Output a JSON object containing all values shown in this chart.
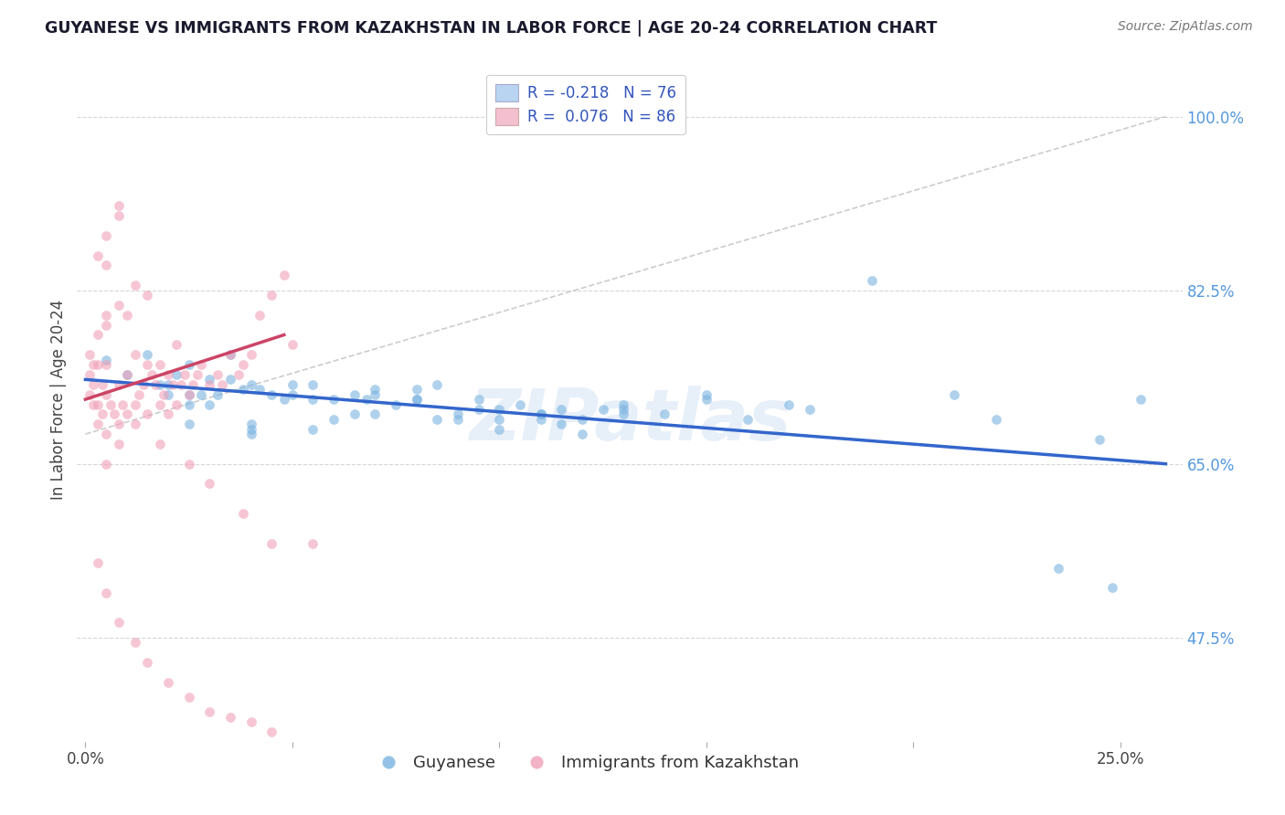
{
  "title": "GUYANESE VS IMMIGRANTS FROM KAZAKHSTAN IN LABOR FORCE | AGE 20-24 CORRELATION CHART",
  "source": "Source: ZipAtlas.com",
  "ylabel": "In Labor Force | Age 20-24",
  "xlim": [
    -0.002,
    0.265
  ],
  "ylim": [
    0.37,
    1.06
  ],
  "watermark": "ZIPatlas",
  "blue_scatter_x": [
    0.005,
    0.01,
    0.015,
    0.018,
    0.02,
    0.022,
    0.025,
    0.028,
    0.03,
    0.032,
    0.035,
    0.038,
    0.04,
    0.042,
    0.045,
    0.048,
    0.05,
    0.055,
    0.06,
    0.065,
    0.068,
    0.07,
    0.075,
    0.08,
    0.085,
    0.09,
    0.095,
    0.1,
    0.105,
    0.11,
    0.115,
    0.12,
    0.125,
    0.13,
    0.14,
    0.15,
    0.16,
    0.175,
    0.19,
    0.21,
    0.22,
    0.245,
    0.025,
    0.035,
    0.05,
    0.065,
    0.08,
    0.095,
    0.11,
    0.13,
    0.15,
    0.17,
    0.02,
    0.03,
    0.04,
    0.055,
    0.07,
    0.09,
    0.11,
    0.13,
    0.025,
    0.04,
    0.06,
    0.08,
    0.1,
    0.12,
    0.235,
    0.248,
    0.255,
    0.025,
    0.04,
    0.055,
    0.07,
    0.085,
    0.1,
    0.115
  ],
  "blue_scatter_y": [
    0.755,
    0.74,
    0.76,
    0.73,
    0.72,
    0.74,
    0.75,
    0.72,
    0.735,
    0.72,
    0.735,
    0.725,
    0.73,
    0.725,
    0.72,
    0.715,
    0.72,
    0.73,
    0.715,
    0.72,
    0.715,
    0.725,
    0.71,
    0.715,
    0.73,
    0.7,
    0.715,
    0.705,
    0.71,
    0.7,
    0.705,
    0.695,
    0.705,
    0.705,
    0.7,
    0.715,
    0.695,
    0.705,
    0.835,
    0.72,
    0.695,
    0.675,
    0.72,
    0.76,
    0.73,
    0.7,
    0.725,
    0.705,
    0.7,
    0.71,
    0.72,
    0.71,
    0.73,
    0.71,
    0.69,
    0.715,
    0.72,
    0.695,
    0.695,
    0.7,
    0.71,
    0.685,
    0.695,
    0.715,
    0.695,
    0.68,
    0.545,
    0.525,
    0.715,
    0.69,
    0.68,
    0.685,
    0.7,
    0.695,
    0.685,
    0.69
  ],
  "pink_scatter_x": [
    0.001,
    0.001,
    0.001,
    0.002,
    0.002,
    0.002,
    0.003,
    0.003,
    0.003,
    0.003,
    0.004,
    0.004,
    0.005,
    0.005,
    0.005,
    0.005,
    0.005,
    0.006,
    0.007,
    0.008,
    0.008,
    0.008,
    0.009,
    0.01,
    0.01,
    0.01,
    0.012,
    0.012,
    0.013,
    0.014,
    0.015,
    0.015,
    0.015,
    0.016,
    0.017,
    0.018,
    0.018,
    0.019,
    0.02,
    0.02,
    0.021,
    0.022,
    0.022,
    0.023,
    0.024,
    0.025,
    0.026,
    0.027,
    0.028,
    0.03,
    0.032,
    0.033,
    0.035,
    0.037,
    0.038,
    0.04,
    0.042,
    0.045,
    0.048,
    0.05,
    0.005,
    0.008,
    0.012,
    0.018,
    0.025,
    0.03,
    0.038,
    0.045,
    0.055,
    0.003,
    0.005,
    0.008,
    0.012,
    0.015,
    0.02,
    0.025,
    0.03,
    0.035,
    0.04,
    0.045,
    0.005,
    0.008,
    0.012,
    0.003,
    0.005,
    0.008
  ],
  "pink_scatter_y": [
    0.72,
    0.74,
    0.76,
    0.71,
    0.73,
    0.75,
    0.69,
    0.71,
    0.75,
    0.78,
    0.7,
    0.73,
    0.68,
    0.72,
    0.75,
    0.8,
    0.85,
    0.71,
    0.7,
    0.69,
    0.73,
    0.9,
    0.71,
    0.7,
    0.74,
    0.8,
    0.71,
    0.76,
    0.72,
    0.73,
    0.7,
    0.75,
    0.82,
    0.74,
    0.73,
    0.71,
    0.75,
    0.72,
    0.7,
    0.74,
    0.73,
    0.71,
    0.77,
    0.73,
    0.74,
    0.72,
    0.73,
    0.74,
    0.75,
    0.73,
    0.74,
    0.73,
    0.76,
    0.74,
    0.75,
    0.76,
    0.8,
    0.82,
    0.84,
    0.77,
    0.65,
    0.67,
    0.69,
    0.67,
    0.65,
    0.63,
    0.6,
    0.57,
    0.57,
    0.55,
    0.52,
    0.49,
    0.47,
    0.45,
    0.43,
    0.415,
    0.4,
    0.395,
    0.39,
    0.38,
    0.79,
    0.81,
    0.83,
    0.86,
    0.88,
    0.91
  ],
  "blue_line_x": [
    0.0,
    0.261
  ],
  "blue_line_y": [
    0.735,
    0.65
  ],
  "pink_line_x": [
    0.0,
    0.048
  ],
  "pink_line_y": [
    0.715,
    0.78
  ],
  "dashed_line_x": [
    0.0,
    0.261
  ],
  "dashed_line_y": [
    0.68,
    1.0
  ],
  "blue_color": "#7ab3e0",
  "pink_color": "#f0a0b8",
  "blue_line_color": "#3366cc",
  "pink_line_color": "#cc4466",
  "dashed_line_color": "#cccccc",
  "blue_legend_color": "#b8d4f0",
  "pink_legend_color": "#f4c0d0",
  "legend_text_color": "#3355bb",
  "right_tick_color": "#5599dd",
  "y_tick_positions": [
    0.475,
    0.65,
    0.825,
    1.0
  ],
  "y_tick_labels": [
    "47.5%",
    "65.0%",
    "82.5%",
    "100.0%"
  ],
  "x_tick_positions": [
    0.0,
    0.05,
    0.1,
    0.15,
    0.2,
    0.25
  ],
  "x_tick_labels": [
    "0.0%",
    "",
    "",
    "",
    "",
    "25.0%"
  ]
}
